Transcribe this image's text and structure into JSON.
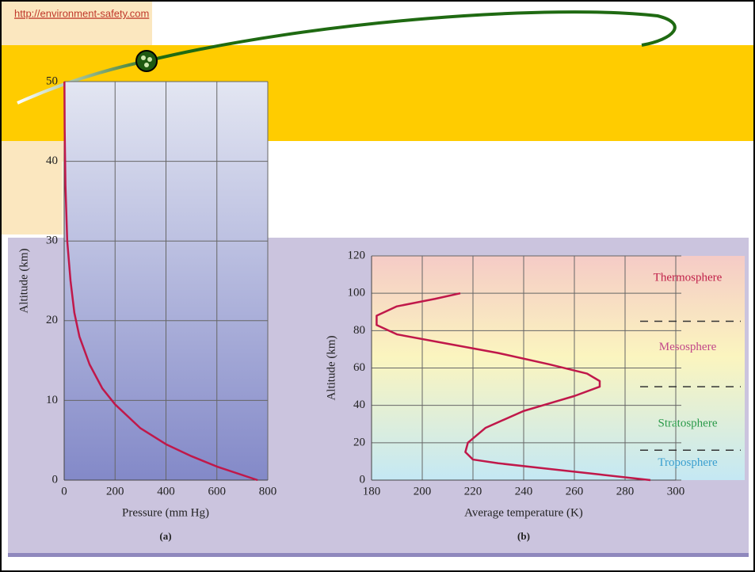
{
  "url": "http://environment-safety.com",
  "chart_data": [
    {
      "type": "line",
      "panel_label": "(a)",
      "x_label": "Pressure (mm Hg)",
      "y_label": "Altitude (km)",
      "xlim": [
        0,
        800
      ],
      "ylim": [
        0,
        50
      ],
      "xticks": [
        0,
        200,
        400,
        600,
        800
      ],
      "yticks": [
        0,
        10,
        20,
        30,
        40,
        50
      ],
      "grid": true,
      "series": [
        {
          "color": "#c0184a",
          "x": [
            760,
            600,
            500,
            400,
            300,
            200,
            150,
            100,
            60,
            40,
            25,
            12,
            5,
            2,
            1
          ],
          "values": [
            0,
            1.7,
            3,
            4.5,
            6.5,
            9.5,
            11.5,
            14.5,
            18,
            21,
            25,
            30,
            37,
            44,
            50
          ]
        }
      ]
    },
    {
      "type": "line",
      "panel_label": "(b)",
      "x_label": "Average temperature (K)",
      "y_label": "Altitude (km)",
      "xlim": [
        180,
        300
      ],
      "ylim": [
        0,
        120
      ],
      "xticks": [
        180,
        200,
        220,
        240,
        260,
        280,
        300
      ],
      "yticks": [
        0,
        20,
        40,
        60,
        80,
        100,
        120
      ],
      "grid": true,
      "layers": [
        {
          "name": "Thermosphere",
          "altitude": 108,
          "color": "#c0204a"
        },
        {
          "name": "Mesosphere",
          "altitude": 71,
          "color": "#c2488a"
        },
        {
          "name": "Stratosphere",
          "altitude": 30,
          "color": "#2a9a4a"
        },
        {
          "name": "Troposphere",
          "altitude": 9,
          "color": "#3a9fd0"
        }
      ],
      "boundaries": [
        85,
        50,
        16
      ],
      "series": [
        {
          "color": "#c0184a",
          "x": [
            290,
            270,
            250,
            230,
            220,
            217,
            218,
            225,
            240,
            260,
            270,
            270,
            265,
            250,
            230,
            210,
            190,
            182,
            182,
            190,
            205,
            215
          ],
          "values": [
            0,
            3,
            6,
            9,
            11,
            15,
            20,
            28,
            37,
            45,
            50,
            53,
            57,
            62,
            68,
            73,
            78,
            83,
            88,
            93,
            97,
            100
          ]
        }
      ]
    }
  ]
}
